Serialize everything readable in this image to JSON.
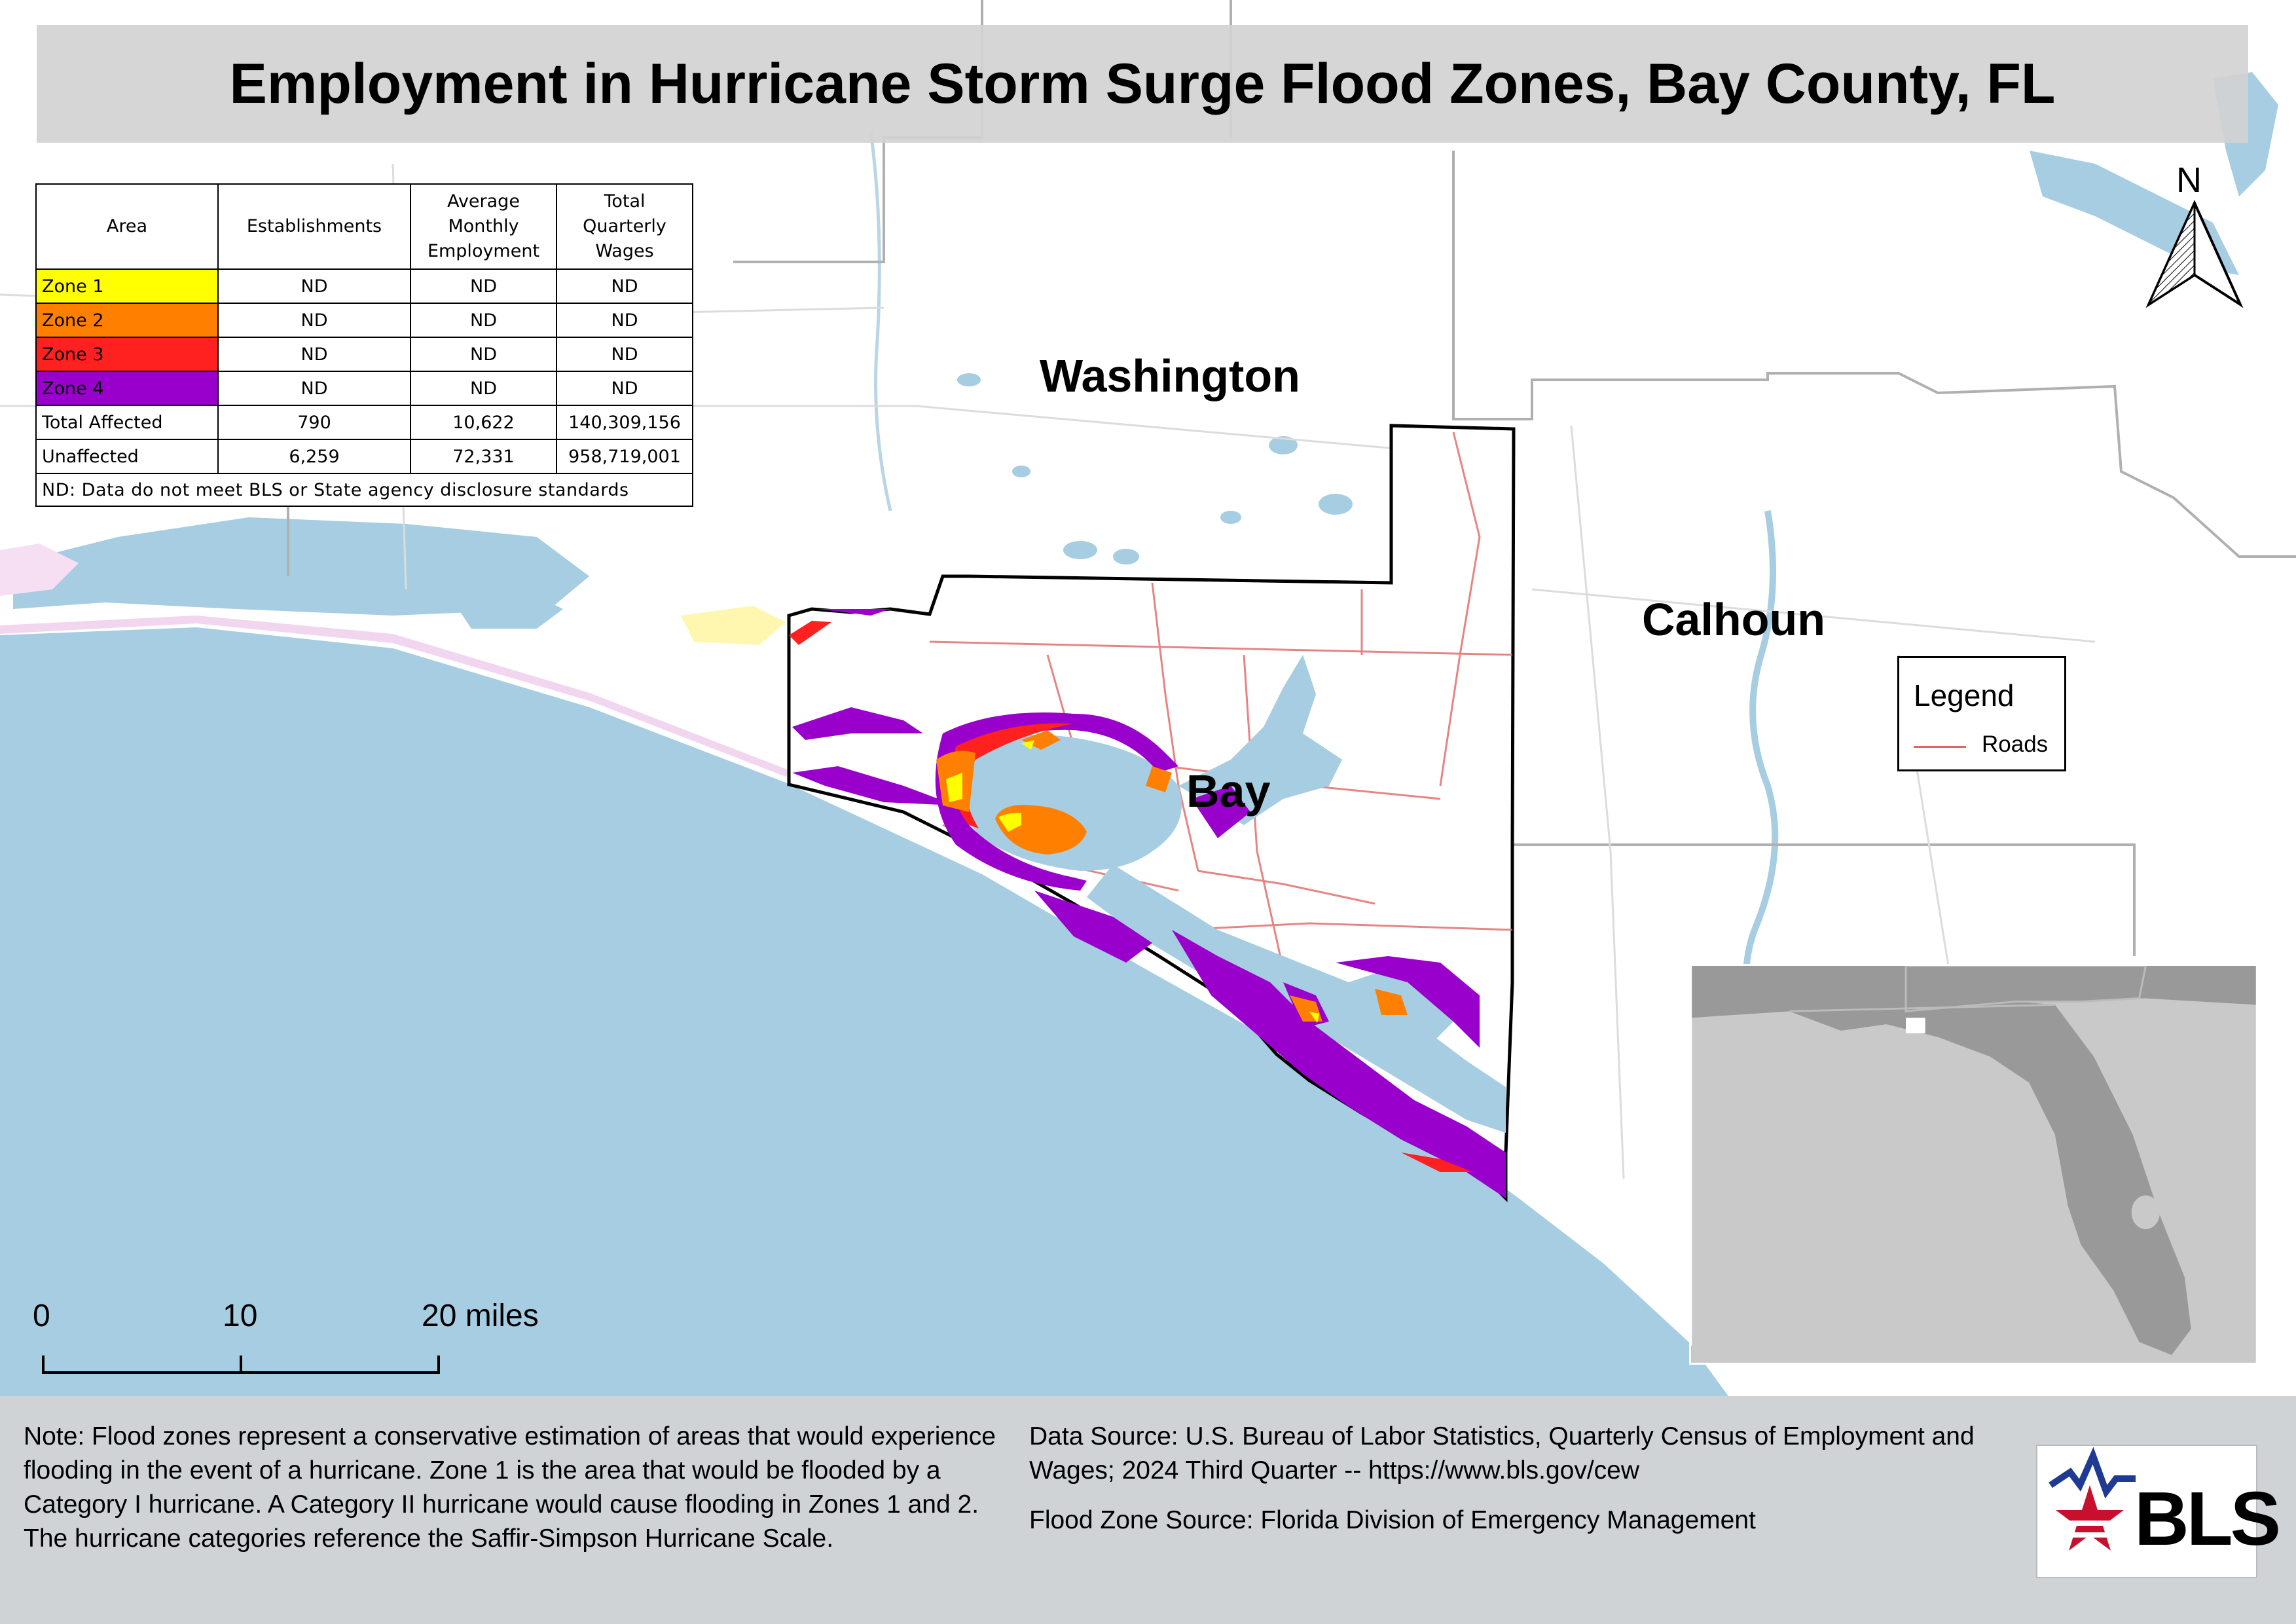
{
  "title": "Employment in Hurricane Storm Surge Flood Zones, Bay County, FL",
  "table": {
    "headers": [
      "Area",
      "Establishments",
      "Average Monthly Employment",
      "Total Quarterly Wages"
    ],
    "rows": [
      {
        "area": "Zone 1",
        "color": "#ffff00",
        "establishments": "ND",
        "employment": "ND",
        "wages": "ND"
      },
      {
        "area": "Zone 2",
        "color": "#ff8000",
        "establishments": "ND",
        "employment": "ND",
        "wages": "ND"
      },
      {
        "area": "Zone 3",
        "color": "#ff2020",
        "establishments": "ND",
        "employment": "ND",
        "wages": "ND"
      },
      {
        "area": "Zone 4",
        "color": "#9900cc",
        "establishments": "ND",
        "employment": "ND",
        "wages": "ND"
      },
      {
        "area": "Total Affected",
        "color": "#ffffff",
        "establishments": "790",
        "employment": "10,622",
        "wages": "140,309,156"
      },
      {
        "area": "Unaffected",
        "color": "#ffffff",
        "establishments": "6,259",
        "employment": "72,331",
        "wages": "958,719,001"
      }
    ],
    "note": "ND: Data do not meet BLS or State agency disclosure standards"
  },
  "labels": {
    "washington": "Washington",
    "calhoun": "Calhoun",
    "bay": "Bay",
    "north": "N"
  },
  "legend": {
    "title": "Legend",
    "roads_label": "Roads",
    "roads_color": "#e06666"
  },
  "scale": {
    "tick_0": "0",
    "tick_10": "10",
    "tick_20": "20 miles"
  },
  "footer": {
    "note": "Note: Flood zones represent a conservative estimation of areas that would experience flooding in the event of a hurricane. Zone 1 is the area that would be flooded by a Category I hurricane. A Category II hurricane would cause flooding in Zones 1 and 2. The hurricane categories reference the Saffir-Simpson Hurricane Scale.",
    "data_source": "Data Source: U.S. Bureau of Labor Statistics, Quarterly Census of Employment and Wages; 2024 Third Quarter -- https://www.bls.gov/cew",
    "flood_source": "Flood Zone Source: Florida Division of Emergency Management"
  },
  "logo": {
    "text": "BLS"
  },
  "colors": {
    "water": "#a6cde1",
    "zone1": "#ffff00",
    "zone2": "#ff8000",
    "zone3": "#ff2020",
    "zone4": "#9900cc",
    "inset_land": "#999999",
    "inset_bg": "#c9c9c9"
  }
}
